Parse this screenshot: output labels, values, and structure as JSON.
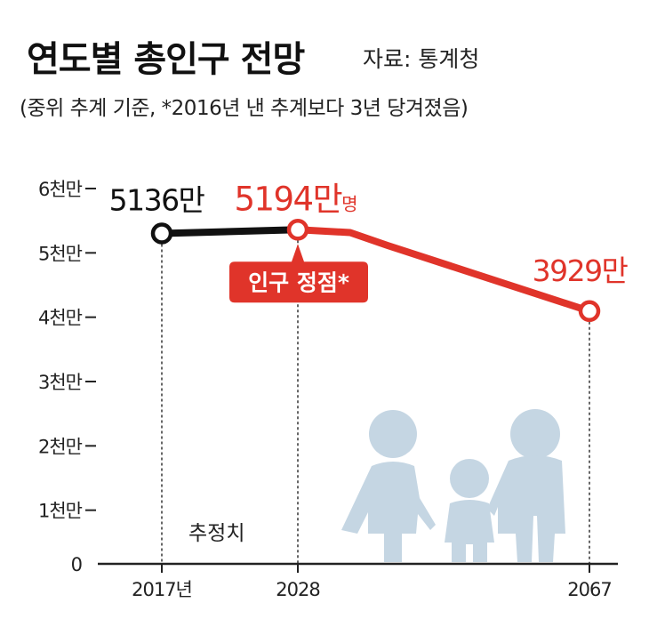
{
  "header": {
    "title": "연도별 총인구 전망",
    "source": "자료: 통계청",
    "subtitle": "(중위 추계 기준, *2016년 낸 추계보다 3년 당겨졌음)"
  },
  "chart_data": {
    "type": "line",
    "title": "연도별 총인구 전망",
    "x": [
      2017,
      2028,
      2035,
      2045,
      2067
    ],
    "x_tick_labels": [
      "2017년",
      "2028",
      "2067"
    ],
    "x_tick_values": [
      2017,
      2028,
      2067
    ],
    "y_tick_labels": [
      "0",
      "1천만",
      "2천만",
      "3천만",
      "4천만",
      "5천만",
      "6천만"
    ],
    "ylim": [
      0,
      6000
    ],
    "y_unit": "만명",
    "series": [
      {
        "color": "#111111",
        "x": [
          2017,
          2028
        ],
        "values": [
          5136,
          5194
        ]
      },
      {
        "color": "#e0342a",
        "x": [
          2028,
          2035,
          2040,
          2067
        ],
        "values": [
          5194,
          5150,
          4950,
          3929
        ]
      }
    ],
    "annotations": [
      {
        "x": 2017,
        "value": 5136,
        "text": "5136만",
        "color": "#111111"
      },
      {
        "x": 2028,
        "value": 5194,
        "text": "5194만",
        "suffix": "명",
        "color": "#e0342a"
      },
      {
        "x": 2067,
        "value": 3929,
        "text": "3929만",
        "color": "#e0342a"
      }
    ],
    "callout": {
      "x": 2028,
      "text": "인구 정점*",
      "color": "#e0342a"
    },
    "estimate_label": "추정치"
  },
  "colors": {
    "accent_red": "#e0342a",
    "line_black": "#111111",
    "silhouette": "#c5d6e3"
  },
  "decoration": {
    "icon": "family-silhouette-icon"
  }
}
